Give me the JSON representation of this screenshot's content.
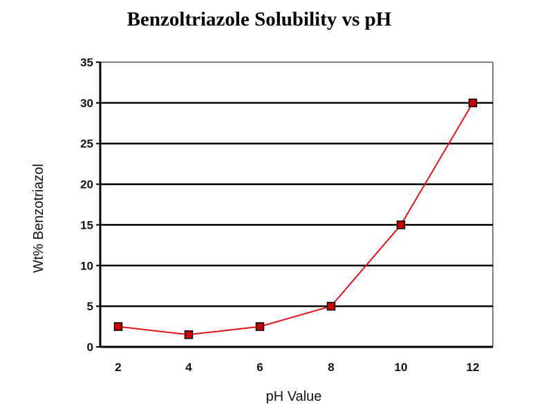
{
  "chart_data": {
    "type": "line",
    "title": "Benzoltriazole Solubility vs pH",
    "xlabel": "pH Value",
    "ylabel": "Wt% Benzotriazol",
    "x_tick_labels": [
      "2",
      "4",
      "6",
      "8",
      "10",
      "12"
    ],
    "y_ticks": [
      0,
      5,
      10,
      15,
      20,
      25,
      30,
      35
    ],
    "ylim": [
      0,
      35
    ],
    "grid": "horizontal",
    "series": [
      {
        "color": "#e8101a",
        "marker_color": "#cc0000",
        "points": [
          {
            "x": 2,
            "y": 2.5
          },
          {
            "x": 4,
            "y": 1.5
          },
          {
            "x": 6,
            "y": 2.5
          },
          {
            "x": 8,
            "y": 5
          },
          {
            "x": 10,
            "y": 15
          },
          {
            "x": 12,
            "y": 30
          }
        ]
      }
    ]
  }
}
